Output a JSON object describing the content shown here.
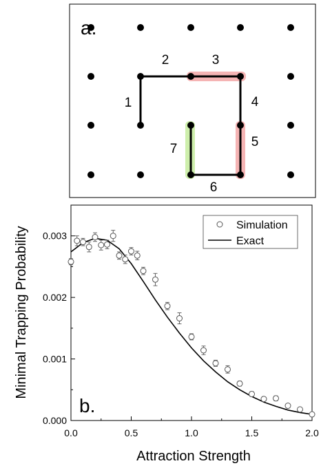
{
  "panel_a": {
    "label": "a.",
    "edge_labels": [
      "1",
      "2",
      "3",
      "4",
      "5",
      "6",
      "7"
    ],
    "highlight_colors": {
      "red": "#f29b9b",
      "green": "#c6ec9e"
    }
  },
  "chart_data": {
    "type": "scatter",
    "panel_label": "b.",
    "xlabel": "Attraction Strength",
    "ylabel": "Minimal Trapping Probability",
    "xlim": [
      0.0,
      2.0
    ],
    "ylim": [
      0.0,
      0.0035
    ],
    "xticks": [
      0.0,
      0.5,
      1.0,
      1.5,
      2.0
    ],
    "xtick_labels": [
      "0.0",
      "0.5",
      "1.0",
      "1.5",
      "2.0"
    ],
    "yticks": [
      0.0,
      0.001,
      0.002,
      0.003
    ],
    "ytick_labels": [
      "0.000",
      "0.001",
      "0.002",
      "0.003"
    ],
    "legend_position": "top-right",
    "series": [
      {
        "name": "Simulation",
        "kind": "markers-with-errorbars",
        "x": [
          0.0,
          0.05,
          0.1,
          0.15,
          0.2,
          0.25,
          0.3,
          0.35,
          0.4,
          0.45,
          0.5,
          0.55,
          0.6,
          0.7,
          0.8,
          0.9,
          1.0,
          1.1,
          1.2,
          1.3,
          1.4,
          1.5,
          1.6,
          1.7,
          1.8,
          1.9,
          2.0
        ],
        "y": [
          0.00258,
          0.00292,
          0.0029,
          0.00282,
          0.00298,
          0.00285,
          0.00286,
          0.003,
          0.00268,
          0.00262,
          0.00275,
          0.00268,
          0.00243,
          0.00229,
          0.00186,
          0.00166,
          0.00136,
          0.00114,
          0.00093,
          0.00083,
          0.0006,
          0.00043,
          0.00035,
          0.00036,
          0.00024,
          0.00018,
          0.0001
        ],
        "err": [
          5e-05,
          8e-05,
          6e-05,
          8e-05,
          7e-05,
          8e-05,
          7e-05,
          9e-05,
          6e-05,
          7e-05,
          6e-05,
          7e-05,
          6e-05,
          0.0001,
          6e-05,
          9e-05,
          5e-05,
          7e-05,
          5e-05,
          6e-05,
          4e-05,
          4e-05,
          3e-05,
          4e-05,
          3e-05,
          3e-05,
          3e-05
        ]
      },
      {
        "name": "Exact",
        "kind": "line",
        "x": [
          0.0,
          0.1,
          0.2,
          0.3,
          0.4,
          0.5,
          0.6,
          0.7,
          0.8,
          0.9,
          1.0,
          1.1,
          1.2,
          1.3,
          1.4,
          1.5,
          1.6,
          1.7,
          1.8,
          1.9,
          2.0
        ],
        "y": [
          0.00274,
          0.00289,
          0.00296,
          0.00293,
          0.00279,
          0.00255,
          0.00226,
          0.00196,
          0.00168,
          0.00142,
          0.00118,
          0.00097,
          0.00079,
          0.00063,
          0.0005,
          0.00039,
          0.0003,
          0.00023,
          0.00017,
          0.00013,
          0.0001
        ]
      }
    ]
  }
}
